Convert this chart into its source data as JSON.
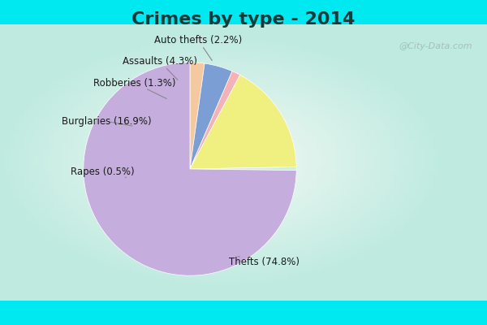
{
  "title": "Crimes by type - 2014",
  "labels": [
    "Thefts",
    "Burglaries",
    "Assaults",
    "Auto thefts",
    "Robberies",
    "Rapes"
  ],
  "values": [
    74.8,
    16.9,
    4.3,
    2.2,
    1.3,
    0.5
  ],
  "colors": [
    "#c5aede",
    "#f0f080",
    "#7b9fd4",
    "#f5c9a0",
    "#f5b0b8",
    "#d0eed8"
  ],
  "title_color": "#1a3a3a",
  "title_fontsize": 16,
  "label_fontsize": 8.5,
  "watermark_text": "@City-Data.com",
  "cyan_band": "#00e8f0",
  "main_bg_top": "#e0f5ee",
  "main_bg_center": "#f5faf8"
}
